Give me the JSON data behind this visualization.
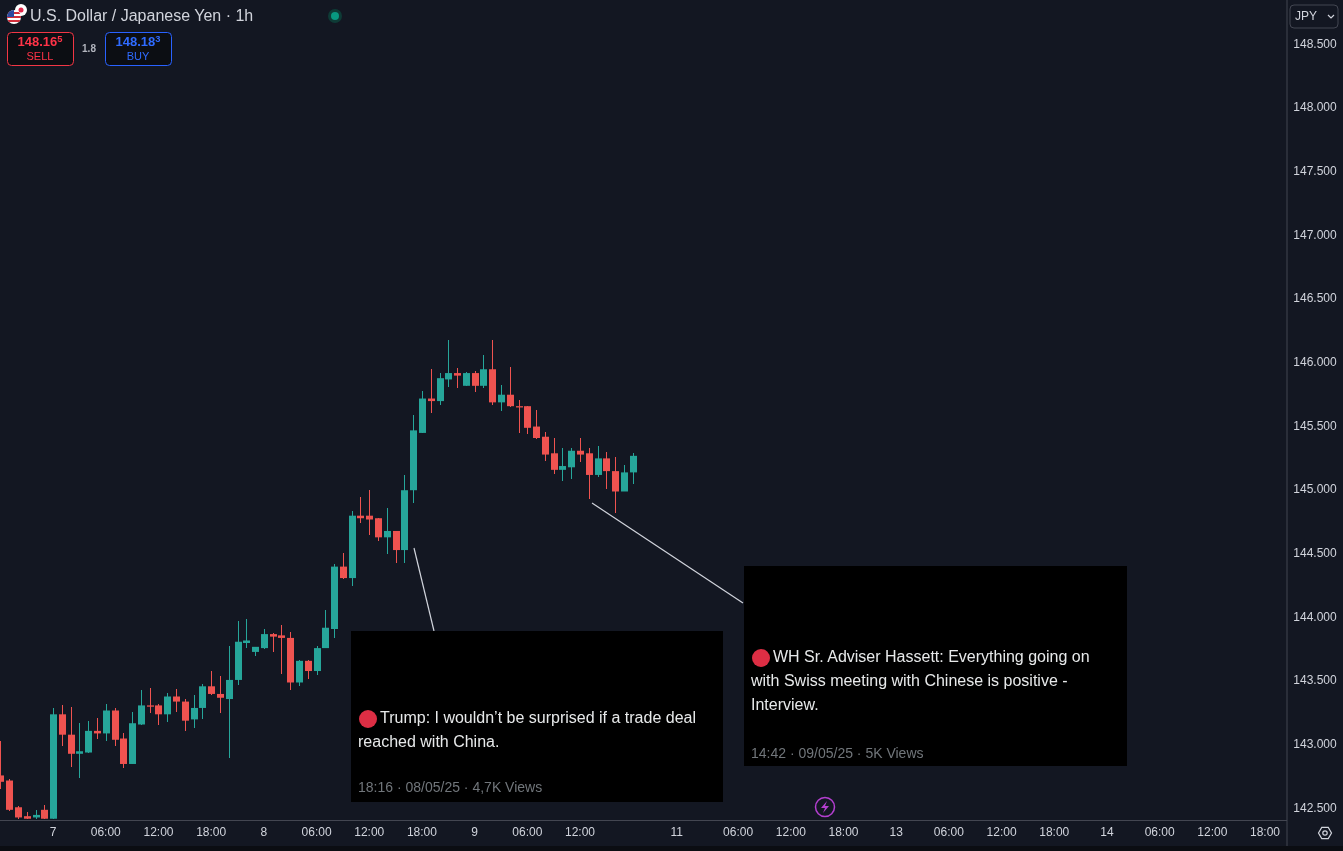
{
  "chart_data": {
    "type": "candlestick",
    "title": "U.S. Dollar / Japanese Yen · 1h",
    "ylabel": "JPY",
    "categories": [
      null,
      null,
      null,
      null,
      null,
      null,
      "7",
      null,
      null,
      null,
      null,
      null,
      "06:00",
      null,
      null,
      null,
      null,
      null,
      "12:00",
      null,
      null,
      null,
      null,
      null,
      "18:00",
      null,
      null,
      null,
      null,
      null,
      "8",
      null,
      null,
      null,
      null,
      null,
      "06:00",
      null,
      null,
      null,
      null,
      null,
      "12:00",
      null,
      null,
      null,
      null,
      null,
      "18:00",
      null,
      null,
      null,
      null,
      null,
      "9",
      null,
      null,
      null,
      null,
      null,
      "06:00",
      null,
      null,
      null,
      null,
      null,
      "12:00",
      null,
      null,
      null,
      null,
      null,
      null,
      null,
      null,
      null,
      null,
      "11",
      null,
      null,
      null,
      null,
      null,
      null,
      "06:00",
      null,
      null,
      null,
      null,
      null,
      "12:00",
      null,
      null,
      null,
      null,
      null,
      "18:00",
      null,
      null,
      null,
      null,
      null,
      "13",
      null,
      null,
      null,
      null,
      null,
      "06:00",
      null,
      null,
      null,
      null,
      null,
      "12:00",
      null,
      null,
      null,
      null,
      null,
      "18:00",
      null,
      null,
      null,
      null,
      null,
      "14",
      null,
      null,
      null,
      null,
      null,
      "06:00",
      null,
      null,
      null,
      null,
      null,
      "12:00",
      null,
      null,
      null,
      null,
      null,
      "18:00",
      null,
      null
    ],
    "ohlc": [
      [
        142.76,
        143.03,
        142.65,
        142.71
      ],
      [
        142.72,
        142.73,
        142.48,
        142.49
      ],
      [
        142.51,
        142.52,
        142.42,
        142.43
      ],
      [
        142.44,
        142.47,
        142.42,
        142.42
      ],
      [
        142.43,
        142.49,
        142.42,
        142.45
      ],
      [
        142.49,
        142.53,
        142.42,
        142.42
      ],
      [
        142.42,
        143.29,
        142.42,
        143.24
      ],
      [
        143.24,
        143.31,
        142.99,
        143.08
      ],
      [
        143.08,
        143.3,
        142.83,
        142.93
      ],
      [
        142.93,
        143.17,
        142.74,
        142.95
      ],
      [
        142.94,
        143.19,
        142.94,
        143.11
      ],
      [
        143.11,
        143.21,
        143.05,
        143.09
      ],
      [
        143.09,
        143.32,
        143.03,
        143.27
      ],
      [
        143.27,
        143.29,
        142.99,
        143.04
      ],
      [
        143.05,
        143.09,
        142.82,
        142.85
      ],
      [
        142.85,
        143.26,
        142.85,
        143.17
      ],
      [
        143.16,
        143.43,
        143.16,
        143.31
      ],
      [
        143.31,
        143.45,
        143.25,
        143.3
      ],
      [
        143.31,
        143.32,
        143.16,
        143.24
      ],
      [
        143.24,
        143.41,
        143.18,
        143.38
      ],
      [
        143.38,
        143.44,
        143.26,
        143.34
      ],
      [
        143.34,
        143.36,
        143.11,
        143.19
      ],
      [
        143.2,
        143.39,
        143.13,
        143.29
      ],
      [
        143.29,
        143.48,
        143.2,
        143.46
      ],
      [
        143.46,
        143.58,
        143.39,
        143.4
      ],
      [
        143.4,
        143.54,
        143.25,
        143.37
      ],
      [
        143.36,
        143.78,
        142.9,
        143.51
      ],
      [
        143.51,
        143.97,
        143.47,
        143.81
      ],
      [
        143.8,
        143.99,
        143.76,
        143.82
      ],
      [
        143.73,
        143.77,
        143.7,
        143.77
      ],
      [
        143.76,
        143.91,
        143.75,
        143.87
      ],
      [
        143.87,
        143.88,
        143.73,
        143.85
      ],
      [
        143.86,
        143.94,
        143.56,
        143.84
      ],
      [
        143.84,
        143.89,
        143.43,
        143.49
      ],
      [
        143.49,
        143.67,
        143.46,
        143.66
      ],
      [
        143.66,
        143.67,
        143.52,
        143.58
      ],
      [
        143.58,
        143.78,
        143.55,
        143.76
      ],
      [
        143.76,
        144.06,
        143.76,
        143.92
      ],
      [
        143.91,
        144.42,
        143.84,
        144.4
      ],
      [
        144.4,
        144.51,
        144.3,
        144.31
      ],
      [
        144.31,
        144.84,
        144.25,
        144.8
      ],
      [
        144.8,
        144.95,
        144.74,
        144.78
      ],
      [
        144.8,
        145.0,
        144.65,
        144.77
      ],
      [
        144.78,
        144.78,
        144.6,
        144.63
      ],
      [
        144.63,
        144.86,
        144.5,
        144.68
      ],
      [
        144.68,
        144.68,
        144.43,
        144.53
      ],
      [
        144.53,
        145.12,
        144.43,
        145.0
      ],
      [
        145.0,
        145.59,
        144.9,
        145.47
      ],
      [
        145.45,
        145.78,
        145.45,
        145.72
      ],
      [
        145.72,
        145.95,
        145.61,
        145.7
      ],
      [
        145.7,
        145.92,
        145.67,
        145.88
      ],
      [
        145.87,
        146.18,
        145.81,
        145.92
      ],
      [
        145.92,
        145.96,
        145.8,
        145.9
      ],
      [
        145.82,
        145.93,
        145.82,
        145.92
      ],
      [
        145.92,
        145.94,
        145.77,
        145.82
      ],
      [
        145.82,
        146.06,
        145.8,
        145.95
      ],
      [
        145.95,
        146.18,
        145.67,
        145.69
      ],
      [
        145.69,
        145.83,
        145.62,
        145.75
      ],
      [
        145.75,
        145.97,
        145.65,
        145.66
      ],
      [
        145.66,
        145.71,
        145.45,
        145.65
      ],
      [
        145.66,
        145.66,
        145.44,
        145.49
      ],
      [
        145.5,
        145.63,
        145.4,
        145.41
      ],
      [
        145.42,
        145.46,
        145.23,
        145.28
      ],
      [
        145.29,
        145.41,
        145.13,
        145.16
      ],
      [
        145.16,
        145.33,
        145.07,
        145.19
      ],
      [
        145.18,
        145.33,
        145.09,
        145.31
      ],
      [
        145.31,
        145.41,
        145.22,
        145.28
      ],
      [
        145.29,
        145.33,
        144.93,
        145.12
      ],
      [
        145.12,
        145.35,
        145.1,
        145.25
      ],
      [
        145.25,
        145.3,
        145.01,
        145.15
      ],
      [
        145.15,
        145.26,
        144.82,
        144.99
      ],
      [
        144.99,
        145.2,
        144.99,
        145.14
      ],
      [
        145.14,
        145.29,
        145.05,
        145.27
      ],
      null,
      null,
      null,
      null,
      null,
      null,
      null,
      null,
      null,
      null,
      null,
      null,
      null,
      null,
      null,
      null,
      null,
      null,
      null,
      null,
      null,
      null,
      null,
      null,
      null,
      null,
      null,
      null,
      null,
      null,
      null,
      null,
      null,
      null,
      null,
      null,
      null,
      null,
      null,
      null,
      null,
      null,
      null,
      null,
      null,
      null,
      null,
      null,
      null,
      null,
      null,
      null,
      null,
      null,
      null,
      null,
      null,
      null,
      null,
      null,
      null,
      null,
      null,
      null,
      null,
      null,
      null,
      null,
      null,
      null,
      null,
      null,
      null,
      null
    ],
    "colors": [
      "#ef5350",
      "#ef5350",
      "#ef5350",
      "#ef5350",
      "#26a69a",
      "#ef5350",
      "#26a69a",
      "#ef5350",
      "#ef5350",
      "#26a69a",
      "#26a69a",
      "#ef5350",
      "#26a69a",
      "#ef5350",
      "#ef5350",
      "#26a69a",
      "#26a69a",
      "#ef5350",
      "#ef5350",
      "#26a69a",
      "#ef5350",
      "#ef5350",
      "#26a69a",
      "#26a69a",
      "#ef5350",
      "#ef5350",
      "#26a69a",
      "#26a69a",
      "#26a69a",
      "#26a69a",
      "#26a69a",
      "#ef5350",
      "#ef5350",
      "#ef5350",
      "#26a69a",
      "#ef5350",
      "#26a69a",
      "#26a69a",
      "#26a69a",
      "#ef5350",
      "#26a69a",
      "#ef5350",
      "#ef5350",
      "#ef5350",
      "#26a69a",
      "#ef5350",
      "#26a69a",
      "#26a69a",
      "#26a69a",
      "#ef5350",
      "#26a69a",
      "#26a69a",
      "#ef5350",
      "#26a69a",
      "#ef5350",
      "#26a69a",
      "#ef5350",
      "#26a69a",
      "#ef5350",
      "#ef5350",
      "#ef5350",
      "#ef5350",
      "#ef5350",
      "#ef5350",
      "#26a69a",
      "#26a69a",
      "#ef5350",
      "#ef5350",
      "#26a69a",
      "#ef5350",
      "#ef5350",
      "#26a69a",
      "#26a69a",
      null,
      null,
      null,
      null,
      null,
      null,
      null,
      null,
      null,
      null,
      null,
      null,
      null,
      null,
      null,
      null,
      null,
      null,
      null,
      null,
      null,
      null,
      null,
      null,
      null,
      null,
      null,
      null,
      null,
      null,
      null,
      null,
      null,
      null,
      null,
      null,
      null,
      null,
      null,
      null,
      null,
      null,
      null,
      null,
      null,
      null,
      null,
      null,
      null,
      null,
      null,
      null,
      null,
      null,
      null,
      null,
      null,
      null,
      null,
      null,
      null,
      null,
      null,
      null,
      null,
      null,
      null,
      null,
      null,
      null,
      null,
      null,
      null,
      null
    ],
    "ylim": [
      142.41,
      148.85
    ],
    "yticks": [
      {
        "value": 142.5,
        "label": "142.500"
      },
      {
        "value": 143,
        "label": "143.000"
      },
      {
        "value": 143.5,
        "label": "143.500"
      },
      {
        "value": 144,
        "label": "144.000"
      },
      {
        "value": 144.5,
        "label": "144.500"
      },
      {
        "value": 145,
        "label": "145.000"
      },
      {
        "value": 145.5,
        "label": "145.500"
      },
      {
        "value": 146,
        "label": "146.000"
      },
      {
        "value": 146.5,
        "label": "146.500"
      },
      {
        "value": 147,
        "label": "147.000"
      },
      {
        "value": 147.5,
        "label": "147.500"
      },
      {
        "value": 148,
        "label": "148.000"
      },
      {
        "value": 148.5,
        "label": "148.500"
      }
    ],
    "annotations": [
      "148.16$^{5}$",
      "SELL",
      "1.8",
      "148.18$^{3}$",
      "BUY",
      "Trump: I wouldn’t be surprised if a trade deal reached with China.",
      "18:16 · 08/05/25 · 4,7K Views",
      "WH Sr. Adviser Hassett: Everything going on with Swiss meeting with Chinese is positive - Interview.",
      "14:42 · 09/05/25 · 5K Views"
    ]
  }
}
